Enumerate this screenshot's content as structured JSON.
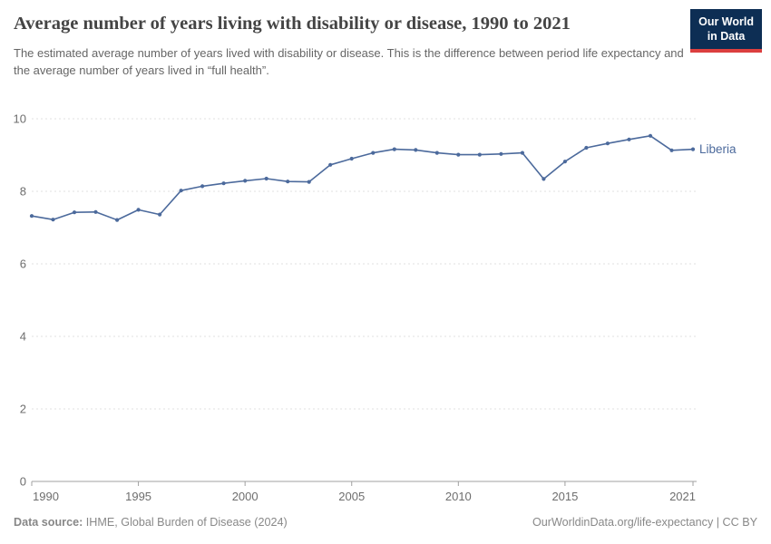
{
  "header": {
    "title": "Average number of years living with disability or disease, 1990 to 2021",
    "subtitle": "The estimated average number of years lived with disability or disease. This is the difference between period life expectancy and the average number of years lived in “full health”.",
    "logo": {
      "line1": "Our World",
      "line2": "in Data"
    }
  },
  "colors": {
    "series_blue": "#4c6a9c",
    "gridline": "#e0e0e0",
    "axis": "#a0a0a0",
    "tick_text": "#6e6e6e",
    "logo_navy": "#0d2e54",
    "logo_red": "#dc3f3f"
  },
  "chart_data": {
    "type": "line",
    "title": "Average number of years living with disability or disease, 1990 to 2021",
    "xlabel": "",
    "ylabel": "",
    "xlim": [
      1990,
      2021
    ],
    "ylim": [
      0,
      10
    ],
    "x_ticks": [
      1990,
      1995,
      2000,
      2005,
      2010,
      2015,
      2021
    ],
    "y_ticks": [
      0,
      2,
      4,
      6,
      8,
      10
    ],
    "grid": "horizontal-dashed",
    "legend_position": "end-of-line-label",
    "series": [
      {
        "name": "Liberia",
        "color": "#4c6a9c",
        "x": [
          1990,
          1991,
          1992,
          1993,
          1994,
          1995,
          1996,
          1997,
          1998,
          1999,
          2000,
          2001,
          2002,
          2003,
          2004,
          2005,
          2006,
          2007,
          2008,
          2009,
          2010,
          2011,
          2012,
          2013,
          2014,
          2015,
          2016,
          2017,
          2018,
          2019,
          2020,
          2021
        ],
        "values": [
          7.32,
          7.22,
          7.42,
          7.43,
          7.21,
          7.49,
          7.36,
          8.02,
          8.14,
          8.22,
          8.29,
          8.35,
          8.27,
          8.26,
          8.73,
          8.9,
          9.06,
          9.16,
          9.14,
          9.06,
          9.01,
          9.01,
          9.03,
          9.06,
          8.34,
          8.82,
          9.2,
          9.32,
          9.43,
          9.53,
          9.13,
          9.16
        ]
      }
    ]
  },
  "footer": {
    "source_label": "Data source:",
    "source_value": " IHME, Global Burden of Disease (2024)",
    "credit": "OurWorldinData.org/life-expectancy | CC BY"
  }
}
